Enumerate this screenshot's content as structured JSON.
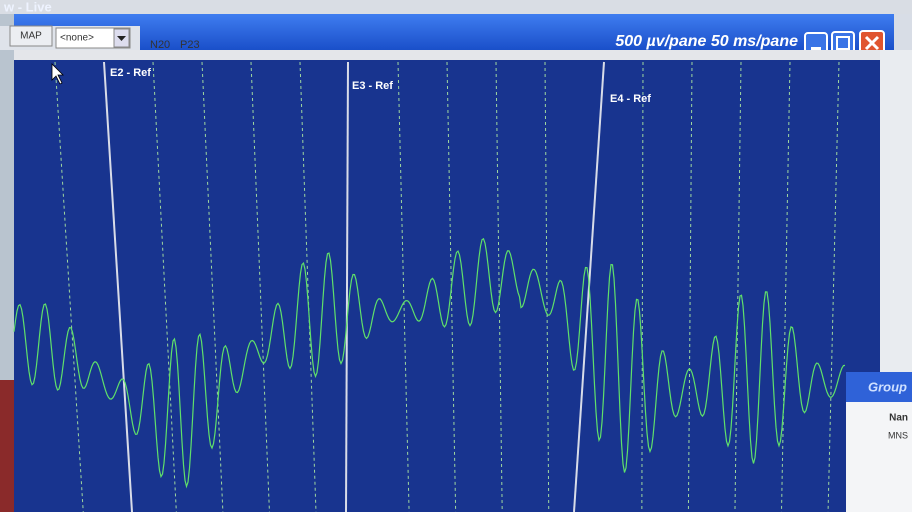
{
  "window": {
    "title": "w - Live",
    "scale": "500 µv/pane 50 ms/pane"
  },
  "toolbar": {
    "map_button": "MAP",
    "dropdown": "<none>",
    "markers": [
      "N20",
      "P23"
    ]
  },
  "panes": [
    "E2 - Ref",
    "E3 - Ref",
    "E4 - Ref"
  ],
  "group_panel": {
    "title": "Group",
    "header": "Nan",
    "row": "MNS"
  }
}
